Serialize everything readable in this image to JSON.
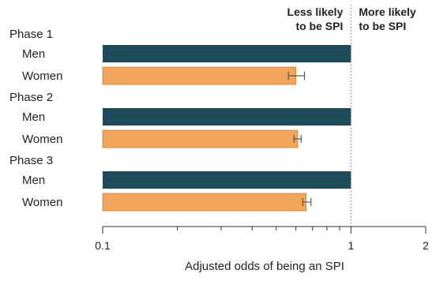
{
  "chart_data": {
    "type": "bar",
    "orientation": "horizontal",
    "x_scale": "log",
    "xlim": [
      0.1,
      2
    ],
    "xlabel": "Adjusted odds of being an SPI",
    "x_ticks": [
      {
        "value": 0.1,
        "label": "0.1"
      },
      {
        "value": 1,
        "label": "1"
      },
      {
        "value": 2,
        "label": "2"
      }
    ],
    "reference_line": 1,
    "annotations": {
      "left": [
        "Less likely",
        "to be SPI"
      ],
      "right": [
        "More likely",
        "to be SPI"
      ]
    },
    "colors": {
      "Men": "#1e4b5a",
      "Women": "#f0a55a",
      "error_bar": "#555555",
      "axis": "#333333"
    },
    "groups": [
      {
        "name": "Phase 1",
        "rows": [
          {
            "label": "Men",
            "value": 1.0
          },
          {
            "label": "Women",
            "value": 0.6,
            "ci": [
              0.56,
              0.65
            ]
          }
        ]
      },
      {
        "name": "Phase 2",
        "rows": [
          {
            "label": "Men",
            "value": 1.0
          },
          {
            "label": "Women",
            "value": 0.61,
            "ci": [
              0.59,
              0.63
            ]
          }
        ]
      },
      {
        "name": "Phase 3",
        "rows": [
          {
            "label": "Men",
            "value": 1.0
          },
          {
            "label": "Women",
            "value": 0.66,
            "ci": [
              0.64,
              0.69
            ]
          }
        ]
      }
    ]
  }
}
